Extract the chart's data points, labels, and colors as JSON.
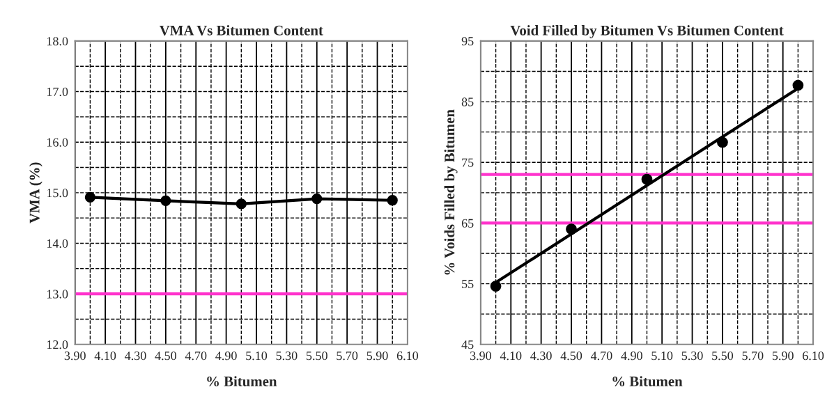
{
  "chart_data": [
    {
      "type": "line",
      "title": "VMA Vs Bitumen Content",
      "xlabel": "% Bitumen",
      "ylabel": "VMA (%)",
      "xlim": [
        3.9,
        6.1
      ],
      "xticks": [
        {
          "value": 3.9,
          "label": "3.90"
        },
        {
          "value": 4.1,
          "label": "4.10"
        },
        {
          "value": 4.3,
          "label": "4.30"
        },
        {
          "value": 4.5,
          "label": "4.50"
        },
        {
          "value": 4.7,
          "label": "4.70"
        },
        {
          "value": 4.9,
          "label": "4.90"
        },
        {
          "value": 5.1,
          "label": "5.10"
        },
        {
          "value": 5.3,
          "label": "5.30"
        },
        {
          "value": 5.5,
          "label": "5.50"
        },
        {
          "value": 5.7,
          "label": "5.70"
        },
        {
          "value": 5.9,
          "label": "5.90"
        },
        {
          "value": 6.1,
          "label": "6.10"
        }
      ],
      "ylim": [
        12,
        18
      ],
      "yticks": [
        {
          "value": 12,
          "label": "12.0"
        },
        {
          "value": 13,
          "label": "13.0"
        },
        {
          "value": 14,
          "label": "14.0"
        },
        {
          "value": 15,
          "label": "15.0"
        },
        {
          "value": 16,
          "label": "16.0"
        },
        {
          "value": 17,
          "label": "17.0"
        },
        {
          "value": 18,
          "label": "18.0"
        }
      ],
      "grid": true,
      "legend": false,
      "marker": "circle",
      "line_style": "solid",
      "series": [
        {
          "color": "#000000",
          "x": [
            4.0,
            4.5,
            5.0,
            5.5,
            6.0
          ],
          "values": [
            14.91,
            14.84,
            14.78,
            14.88,
            14.85
          ]
        }
      ],
      "ref_lines": [
        {
          "axis": "y",
          "value": 13,
          "color": "#ff33cc"
        }
      ]
    },
    {
      "type": "scatter",
      "title": "Void Filled by Bitumen Vs Bitumen Content",
      "xlabel": "% Bitumen",
      "ylabel": "% Voids Filled by Bitumen",
      "xlim": [
        3.9,
        6.1
      ],
      "xticks": [
        {
          "value": 3.9,
          "label": "3.90"
        },
        {
          "value": 4.1,
          "label": "4.10"
        },
        {
          "value": 4.3,
          "label": "4.30"
        },
        {
          "value": 4.5,
          "label": "4.50"
        },
        {
          "value": 4.7,
          "label": "4.70"
        },
        {
          "value": 4.9,
          "label": "4.90"
        },
        {
          "value": 5.1,
          "label": "5.10"
        },
        {
          "value": 5.3,
          "label": "5.30"
        },
        {
          "value": 5.5,
          "label": "5.50"
        },
        {
          "value": 5.7,
          "label": "5.70"
        },
        {
          "value": 5.9,
          "label": "5.90"
        },
        {
          "value": 6.1,
          "label": "6.10"
        }
      ],
      "ylim": [
        45,
        95
      ],
      "yticks": [
        45,
        55,
        65,
        75,
        85,
        95
      ],
      "grid": true,
      "legend": false,
      "marker": "circle",
      "series": [
        {
          "color": "#000000",
          "x": [
            4.0,
            4.5,
            5.0,
            5.5,
            6.0
          ],
          "values": [
            54.6,
            64.0,
            72.2,
            78.3,
            87.7
          ]
        },
        {
          "type": "line",
          "marker": "none",
          "color": "#000000",
          "x": [
            4.0,
            6.0
          ],
          "values": [
            55.2,
            87.2
          ]
        }
      ],
      "ref_lines": [
        {
          "axis": "y",
          "value": 73,
          "color": "#ff33cc"
        },
        {
          "axis": "y",
          "value": 65,
          "color": "#ff33cc"
        }
      ]
    }
  ]
}
